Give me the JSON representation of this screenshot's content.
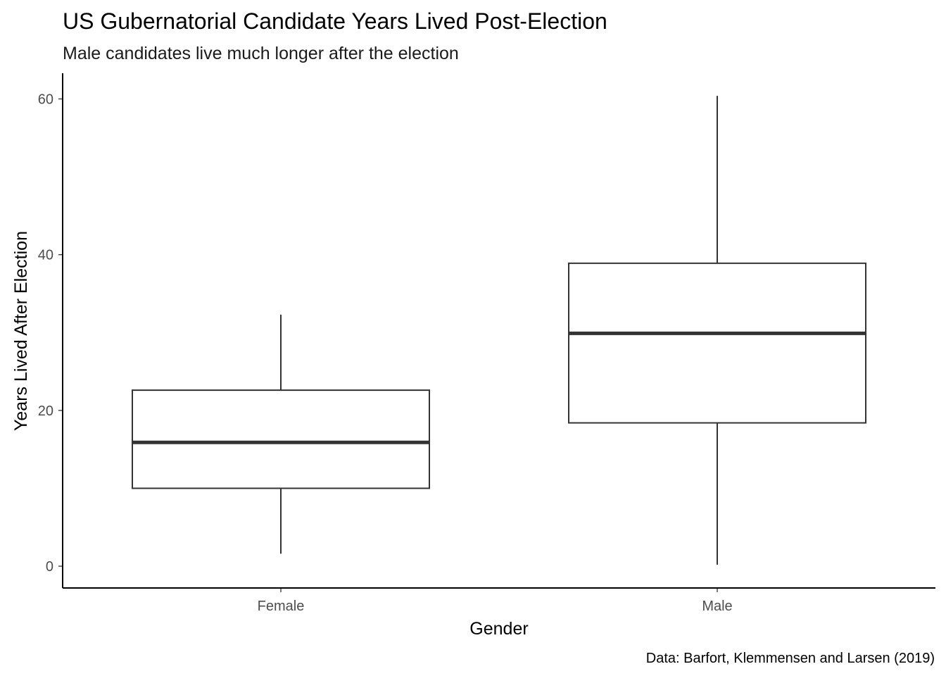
{
  "chart_data": {
    "type": "boxplot",
    "title": "US Gubernatorial Candidate Years Lived Post-Election",
    "subtitle": "Male candidates live much longer after the election",
    "caption": "Data: Barfort, Klemmensen and Larsen (2019)",
    "xlabel": "Gender",
    "ylabel": "Years Lived After Election",
    "categories": [
      "Female",
      "Male"
    ],
    "boxes": [
      {
        "category": "Female",
        "min": 1.6,
        "q1": 10.0,
        "median": 15.9,
        "q3": 22.6,
        "max": 32.3
      },
      {
        "category": "Male",
        "min": 0.2,
        "q1": 18.4,
        "median": 29.9,
        "q3": 38.9,
        "max": 60.4
      }
    ],
    "ylim": [
      -2.8,
      63.3
    ],
    "yticks": [
      0,
      20,
      40,
      60
    ],
    "grid": false,
    "colors": {
      "box_line": "#333333",
      "box_fill": "#ffffff",
      "axis_line": "#000000"
    }
  }
}
